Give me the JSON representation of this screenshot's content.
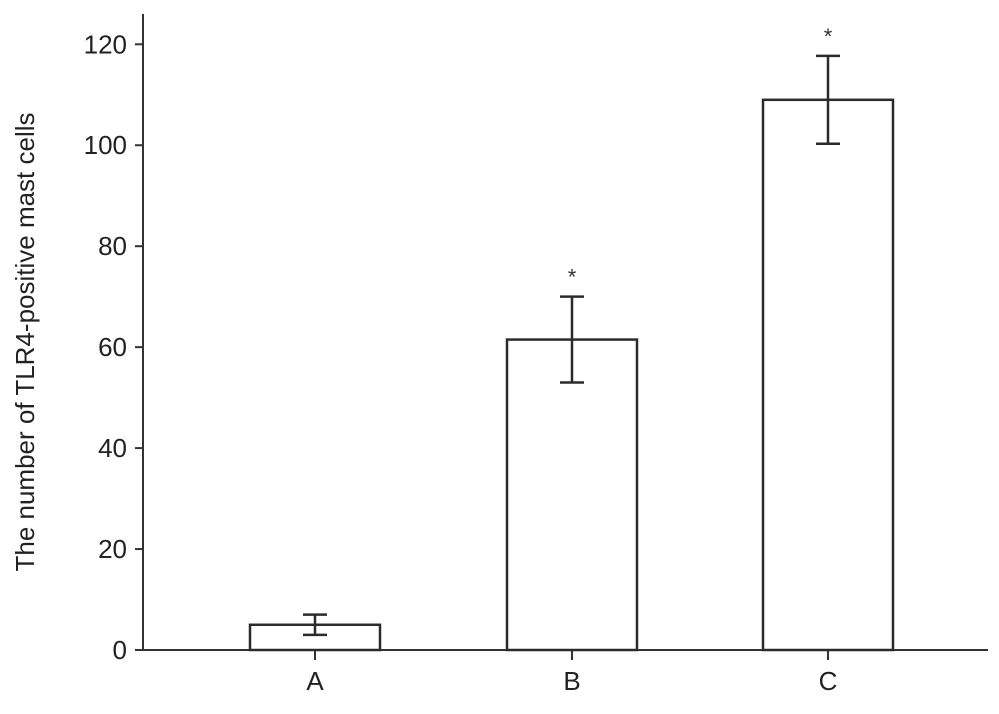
{
  "chart_data": {
    "type": "bar",
    "title": "",
    "xlabel": "",
    "ylabel": "The number of TLR4-positive mast cells",
    "categories": [
      "A",
      "B",
      "C"
    ],
    "values": [
      5,
      61.5,
      109
    ],
    "error": [
      2,
      8.5,
      8.7
    ],
    "significance": [
      "",
      "*",
      "*"
    ],
    "ylim": [
      0,
      126
    ],
    "yticks": [
      0,
      20,
      40,
      60,
      80,
      100,
      120
    ],
    "grid": false,
    "legend": "none",
    "colors": {
      "bar_fill": "#ffffff",
      "bar_stroke": "#2b2b2b",
      "axis": "#333333"
    }
  }
}
